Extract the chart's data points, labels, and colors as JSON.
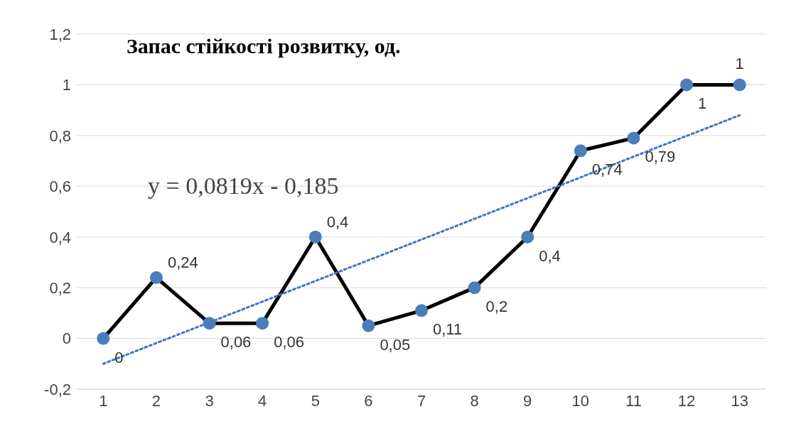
{
  "chart_data": {
    "type": "line",
    "title": "Запас стійкості розвитку,  од.",
    "x": [
      1,
      2,
      3,
      4,
      5,
      6,
      7,
      8,
      9,
      10,
      11,
      12,
      13
    ],
    "xlim": [
      0.5,
      13.5
    ],
    "xticks": [
      1,
      2,
      3,
      4,
      5,
      6,
      7,
      8,
      9,
      10,
      11,
      12,
      13
    ],
    "ylim": [
      -0.2,
      1.2
    ],
    "yticks": [
      {
        "value": -0.2,
        "label": "-0,2"
      },
      0,
      {
        "value": 0.2,
        "label": "0,2"
      },
      {
        "value": 0.4,
        "label": "0,4"
      },
      {
        "value": 0.6,
        "label": "0,6"
      },
      {
        "value": 0.8,
        "label": "0,8"
      },
      1,
      {
        "value": 1.2,
        "label": "1,2"
      }
    ],
    "grid": "y",
    "annotations": [
      "y = 0,0819x - 0,185"
    ],
    "series": [
      {
        "color": "#000000",
        "colors": [
          "#4a7ebb",
          "#4a7ebb",
          "#4a7ebb",
          "#4a7ebb",
          "#4a7ebb",
          "#4a7ebb",
          "#4a7ebb",
          "#4a7ebb",
          "#4a7ebb",
          "#4a7ebb",
          "#4a7ebb",
          "#4a7ebb",
          "#4a7ebb"
        ],
        "marker": "circle",
        "line_style": "solid",
        "values": [
          0,
          0.24,
          0.06,
          0.06,
          0.4,
          0.05,
          0.11,
          0.2,
          0.4,
          0.74,
          0.79,
          1,
          1
        ],
        "value_labels": [
          "0",
          "0,24",
          "0,06",
          "0,06",
          "0,4",
          "0,05",
          "0,11",
          "0,2",
          "0,4",
          "0,74",
          "0,79",
          "1",
          "1"
        ]
      },
      {
        "type": "line",
        "color": "#4472c4",
        "marker": "none",
        "line_style": "dotted",
        "x": [
          1,
          13
        ],
        "values": [
          -0.1,
          0.88
        ]
      }
    ]
  }
}
